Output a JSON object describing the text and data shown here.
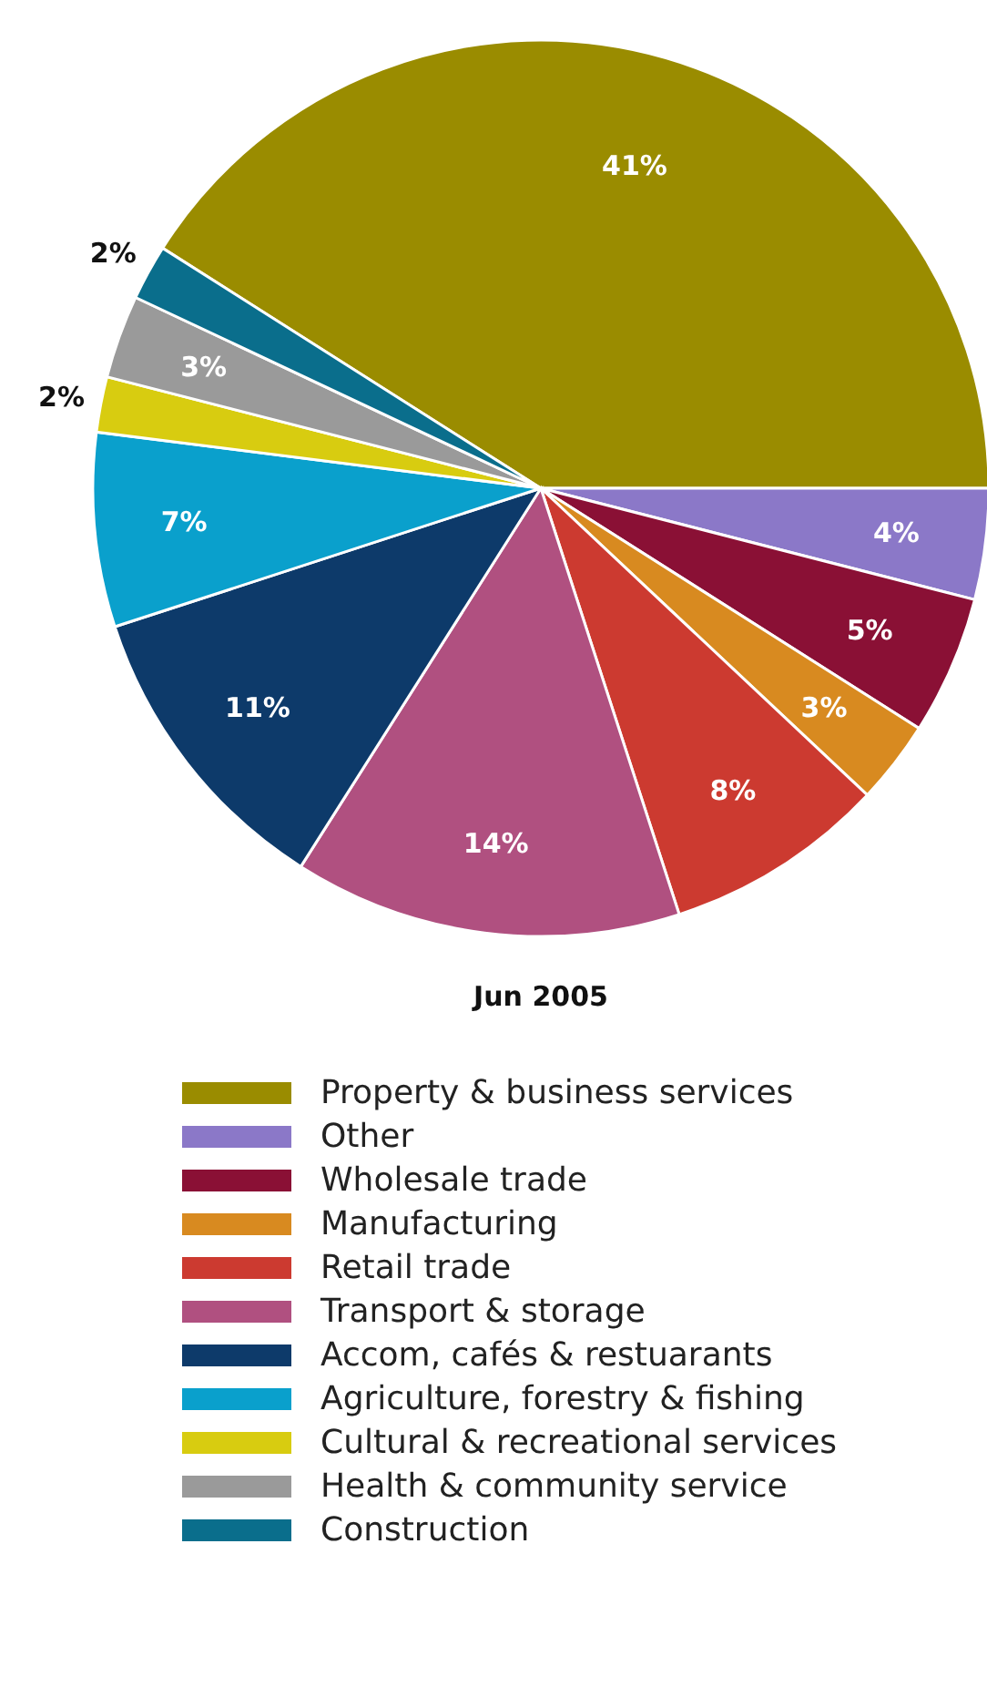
{
  "chart_data": {
    "type": "pie",
    "title": "Jun 2005",
    "categories": [
      "Property & business services",
      "Other",
      "Wholesale trade",
      "Manufacturing",
      "Retail trade",
      "Transport & storage",
      "Accom, cafés & restuarants",
      "Agriculture, forestry & fishing",
      "Cultural & recreational services",
      "Health & community service",
      "Construction"
    ],
    "values": [
      41,
      4,
      5,
      3,
      8,
      14,
      11,
      7,
      2,
      3,
      2
    ],
    "colors": [
      "#9a8c00",
      "#8b78c8",
      "#8a1035",
      "#d88a20",
      "#cc3a30",
      "#b05080",
      "#0d3a6a",
      "#0aa0cc",
      "#d8cc10",
      "#9a9a9a",
      "#0a6e8c"
    ],
    "value_labels": [
      "41%",
      "4%",
      "5%",
      "3%",
      "8%",
      "14%",
      "11%",
      "7%",
      "2%",
      "3%",
      "2%"
    ],
    "legend": "bottom"
  }
}
